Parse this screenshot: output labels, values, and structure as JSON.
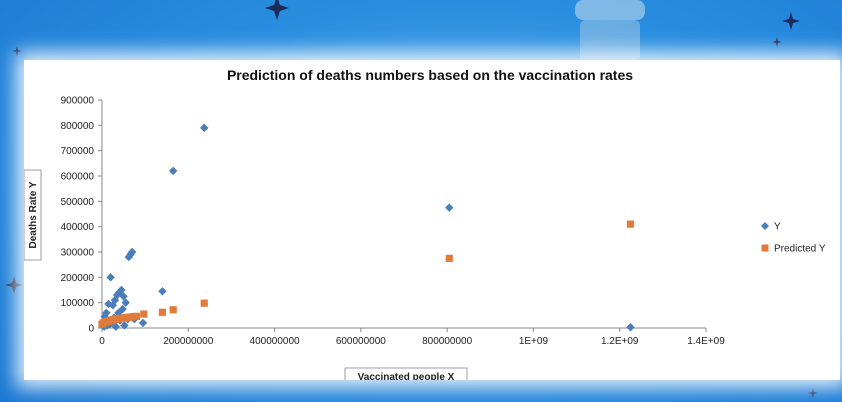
{
  "chart_data": {
    "type": "scatter",
    "title": "Prediction of deaths numbers based on the vaccination rates",
    "xlabel": "Vaccinated people X",
    "ylabel": "Deaths Rate Y",
    "xlim": [
      0,
      1400000000
    ],
    "ylim": [
      0,
      900000
    ],
    "x_ticks": [
      "0",
      "200000000",
      "400000000",
      "600000000",
      "800000000",
      "1E+09",
      "1.2E+09",
      "1.4E+09"
    ],
    "y_ticks": [
      "0",
      "100000",
      "200000",
      "300000",
      "400000",
      "500000",
      "600000",
      "700000",
      "800000",
      "900000"
    ],
    "legend_position": "right",
    "series": [
      {
        "name": "Y",
        "color": "#4a7ebb",
        "marker": "diamond",
        "points": [
          [
            5000000,
            5000
          ],
          [
            6000000,
            45000
          ],
          [
            8000000,
            20000
          ],
          [
            10000000,
            60000
          ],
          [
            12000000,
            10000
          ],
          [
            15000000,
            95000
          ],
          [
            18000000,
            15000
          ],
          [
            20000000,
            200000
          ],
          [
            22000000,
            25000
          ],
          [
            25000000,
            90000
          ],
          [
            28000000,
            40000
          ],
          [
            30000000,
            110000
          ],
          [
            32000000,
            5000
          ],
          [
            35000000,
            130000
          ],
          [
            38000000,
            60000
          ],
          [
            40000000,
            140000
          ],
          [
            42000000,
            30000
          ],
          [
            45000000,
            150000
          ],
          [
            48000000,
            75000
          ],
          [
            50000000,
            125000
          ],
          [
            52000000,
            10000
          ],
          [
            55000000,
            100000
          ],
          [
            58000000,
            40000
          ],
          [
            60000000,
            35000
          ],
          [
            62000000,
            280000
          ],
          [
            66000000,
            290000
          ],
          [
            70000000,
            300000
          ],
          [
            75000000,
            35000
          ],
          [
            95000000,
            20000
          ],
          [
            140000000,
            145000
          ],
          [
            165000000,
            620000
          ],
          [
            237000000,
            790000
          ],
          [
            805000000,
            475000
          ],
          [
            1225000000,
            3000
          ]
        ]
      },
      {
        "name": "Predicted Y",
        "color": "#e07b39",
        "marker": "square",
        "points": [
          [
            0,
            15000
          ],
          [
            3000000,
            20000
          ],
          [
            6000000,
            22000
          ],
          [
            9000000,
            24000
          ],
          [
            12000000,
            26000
          ],
          [
            15000000,
            27000
          ],
          [
            18000000,
            28000
          ],
          [
            21000000,
            30000
          ],
          [
            24000000,
            31000
          ],
          [
            27000000,
            33000
          ],
          [
            30000000,
            34000
          ],
          [
            33000000,
            35000
          ],
          [
            36000000,
            36000
          ],
          [
            40000000,
            37000
          ],
          [
            44000000,
            38000
          ],
          [
            48000000,
            39000
          ],
          [
            52000000,
            40000
          ],
          [
            56000000,
            41000
          ],
          [
            60000000,
            42000
          ],
          [
            65000000,
            43000
          ],
          [
            70000000,
            44000
          ],
          [
            75000000,
            45000
          ],
          [
            80000000,
            46000
          ],
          [
            97000000,
            55000
          ],
          [
            140000000,
            62000
          ],
          [
            165000000,
            72000
          ],
          [
            237000000,
            98000
          ],
          [
            805000000,
            275000
          ],
          [
            1225000000,
            410000
          ]
        ]
      }
    ]
  }
}
